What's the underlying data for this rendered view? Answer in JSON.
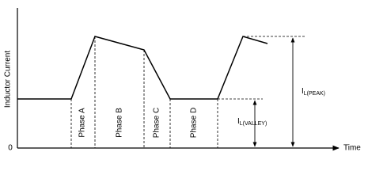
{
  "axes": {
    "y_label": "Inductor Current",
    "origin": "0",
    "x_label": "Time"
  },
  "phases": [
    "Phase A",
    "Phase B",
    "Phase C",
    "Phase D"
  ],
  "annotations": {
    "peak": {
      "symbol": "I",
      "subscript": "L(PEAK)"
    },
    "valley": {
      "symbol": "I",
      "subscript": "L(VALLEY)"
    }
  }
}
